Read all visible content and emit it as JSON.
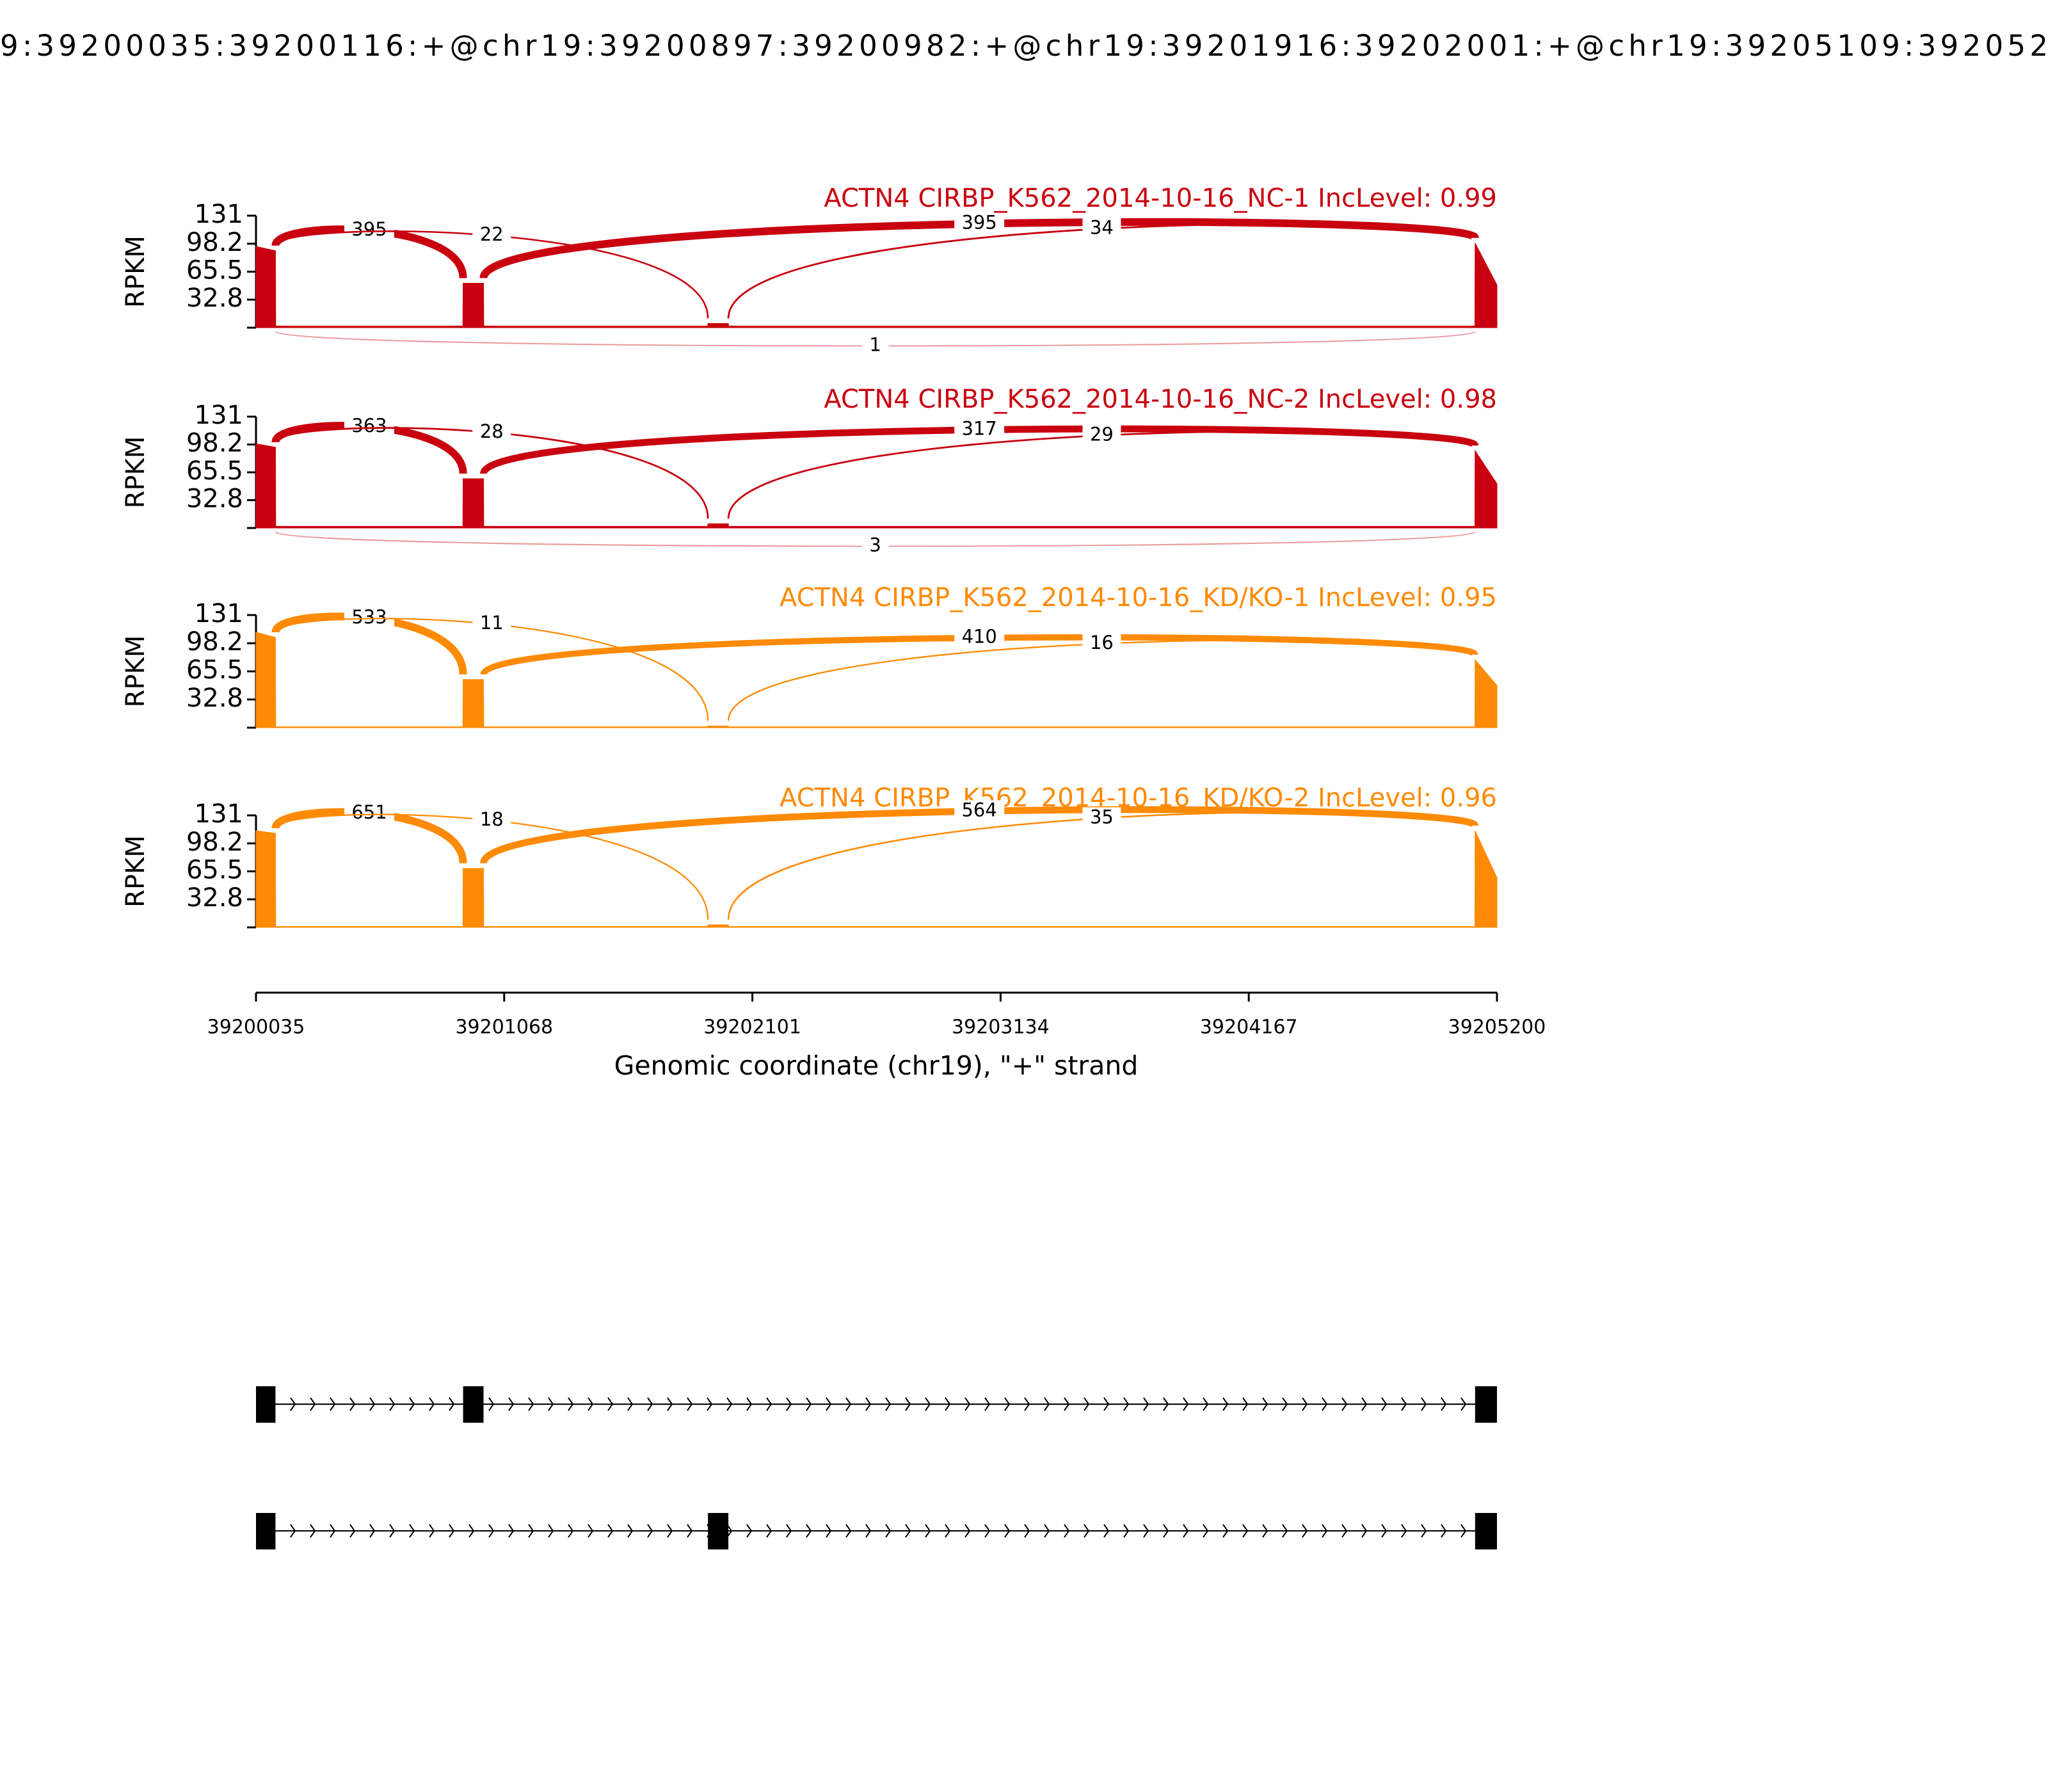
{
  "title": "9:39200035:39200116:+@chr19:39200897:39200982:+@chr19:39201916:39202001:+@chr19:39205109:392052",
  "x_axis": {
    "xlim": [
      39200035,
      39205200
    ],
    "xticks": [
      39200035,
      39201068,
      39202101,
      39203134,
      39204167,
      39205200
    ],
    "xlabel": "Genomic coordinate (chr19), \"+\" strand"
  },
  "chart_data": [
    {
      "type": "sashimi",
      "title": "ACTN4 CIRBP_K562_2014-10-16_NC-1 IncLevel: 0.99",
      "ylabel": "RPKM",
      "color": "#c8000f",
      "ylim": [
        0,
        131
      ],
      "yticks": [
        32.8,
        65.5,
        98.2,
        131
      ],
      "coverage": {
        "x": [
          39200035,
          39200116,
          39200117,
          39200896,
          39200897,
          39200982,
          39200983,
          39201915,
          39201916,
          39202001,
          39202002,
          39205108,
          39205109,
          39205200
        ],
        "values": [
          95,
          90,
          2,
          2,
          52,
          52,
          2,
          2,
          5,
          5,
          2,
          2,
          99,
          50
        ]
      },
      "junctions": [
        {
          "start": 39200116,
          "end": 39200897,
          "count": 395
        },
        {
          "start": 39200116,
          "end": 39201916,
          "count": 22
        },
        {
          "start": 39200982,
          "end": 39205109,
          "count": 395
        },
        {
          "start": 39202001,
          "end": 39205109,
          "count": 34
        },
        {
          "start": 39200116,
          "end": 39205109,
          "count": 1,
          "side": "below"
        }
      ]
    },
    {
      "type": "sashimi",
      "title": "ACTN4 CIRBP_K562_2014-10-16_NC-2 IncLevel: 0.98",
      "ylabel": "RPKM",
      "color": "#c8000f",
      "ylim": [
        0,
        131
      ],
      "yticks": [
        32.8,
        65.5,
        98.2,
        131
      ],
      "coverage": {
        "x": [
          39200035,
          39200116,
          39200117,
          39200896,
          39200897,
          39200982,
          39200983,
          39201915,
          39201916,
          39202001,
          39202002,
          39205108,
          39205109,
          39205200
        ],
        "values": [
          99,
          95,
          2,
          2,
          58,
          58,
          2,
          2,
          5,
          5,
          2,
          2,
          91,
          52
        ]
      },
      "junctions": [
        {
          "start": 39200116,
          "end": 39200897,
          "count": 363
        },
        {
          "start": 39200116,
          "end": 39201916,
          "count": 28
        },
        {
          "start": 39200982,
          "end": 39205109,
          "count": 317
        },
        {
          "start": 39202001,
          "end": 39205109,
          "count": 29
        },
        {
          "start": 39200116,
          "end": 39205109,
          "count": 3,
          "side": "below"
        }
      ]
    },
    {
      "type": "sashimi",
      "title": "ACTN4 CIRBP_K562_2014-10-16_KD/KO-1 IncLevel: 0.95",
      "ylabel": "RPKM",
      "color": "#ff8a05",
      "ylim": [
        0,
        131
      ],
      "yticks": [
        32.8,
        65.5,
        98.2,
        131
      ],
      "coverage": {
        "x": [
          39200035,
          39200116,
          39200117,
          39200896,
          39200897,
          39200982,
          39200983,
          39201915,
          39201916,
          39202001,
          39202002,
          39205108,
          39205109,
          39205200
        ],
        "values": [
          111,
          105,
          1,
          1,
          56,
          56,
          1,
          1,
          2,
          2,
          1,
          1,
          79,
          49
        ]
      },
      "junctions": [
        {
          "start": 39200116,
          "end": 39200897,
          "count": 533
        },
        {
          "start": 39200116,
          "end": 39201916,
          "count": 11
        },
        {
          "start": 39200982,
          "end": 39205109,
          "count": 410
        },
        {
          "start": 39202001,
          "end": 39205109,
          "count": 16
        }
      ]
    },
    {
      "type": "sashimi",
      "title": "ACTN4 CIRBP_K562_2014-10-16_KD/KO-2 IncLevel: 0.96",
      "ylabel": "RPKM",
      "color": "#ff8a05",
      "ylim": [
        0,
        131
      ],
      "yticks": [
        32.8,
        65.5,
        98.2,
        131
      ],
      "coverage": {
        "x": [
          39200035,
          39200116,
          39200117,
          39200896,
          39200897,
          39200982,
          39200983,
          39201915,
          39201916,
          39202001,
          39202002,
          39205108,
          39205109,
          39205200
        ],
        "values": [
          113,
          110,
          1,
          1,
          69,
          69,
          1,
          1,
          3,
          3,
          1,
          1,
          113,
          58
        ]
      },
      "junctions": [
        {
          "start": 39200116,
          "end": 39200897,
          "count": 651
        },
        {
          "start": 39200116,
          "end": 39201916,
          "count": 18
        },
        {
          "start": 39200982,
          "end": 39205109,
          "count": 564
        },
        {
          "start": 39202001,
          "end": 39205109,
          "count": 35
        }
      ]
    }
  ],
  "transcripts": [
    {
      "exons": [
        [
          39200035,
          39200116
        ],
        [
          39200897,
          39200982
        ],
        [
          39205109,
          39205200
        ]
      ]
    },
    {
      "exons": [
        [
          39200035,
          39200116
        ],
        [
          39201916,
          39202001
        ],
        [
          39205109,
          39205200
        ]
      ]
    }
  ]
}
